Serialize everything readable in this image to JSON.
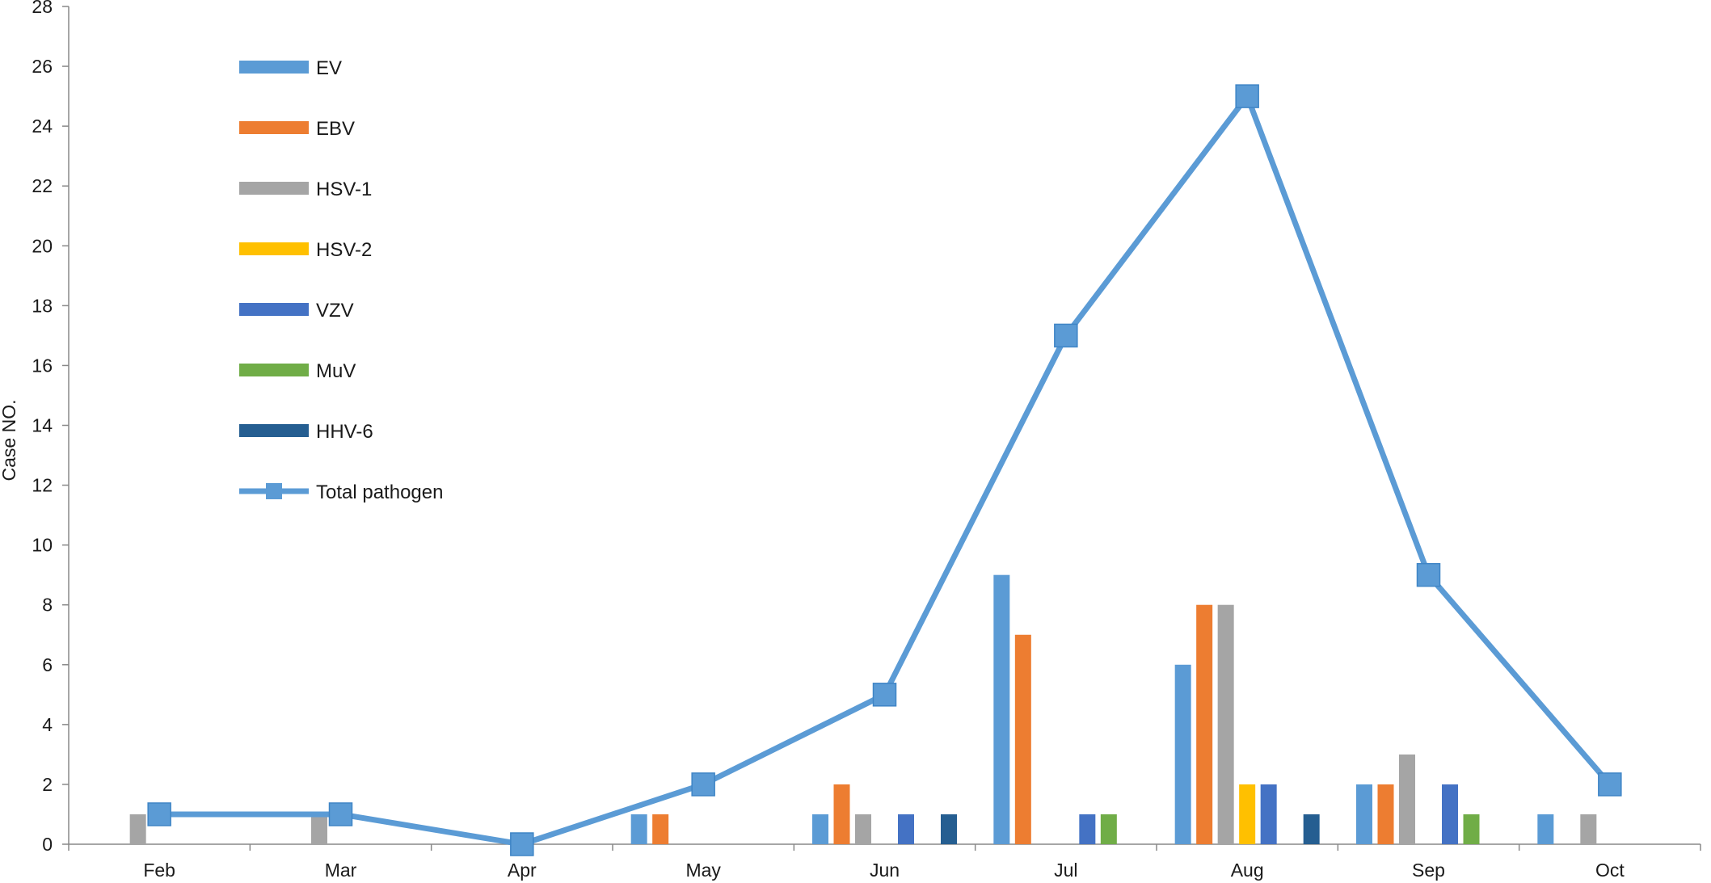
{
  "chart_data": {
    "type": "bar",
    "title": "",
    "xlabel": "",
    "ylabel": "Case NO.",
    "ylim": [
      0,
      28
    ],
    "yticks": [
      0,
      2,
      4,
      6,
      8,
      10,
      12,
      14,
      16,
      18,
      20,
      22,
      24,
      26,
      28
    ],
    "categories": [
      "Feb",
      "Mar",
      "Apr",
      "May",
      "Jun",
      "Jul",
      "Aug",
      "Sep",
      "Oct"
    ],
    "grid": false,
    "legend_position": "top-left",
    "bar_series": [
      {
        "name": "EV",
        "color": "#5b9bd5",
        "values": [
          0,
          0,
          0,
          1,
          1,
          9,
          6,
          2,
          1
        ]
      },
      {
        "name": "EBV",
        "color": "#ed7d31",
        "values": [
          0,
          0,
          0,
          1,
          2,
          7,
          8,
          2,
          0
        ]
      },
      {
        "name": "HSV-1",
        "color": "#a5a5a5",
        "values": [
          1,
          1,
          0,
          0,
          1,
          0,
          8,
          3,
          1
        ]
      },
      {
        "name": "HSV-2",
        "color": "#ffc000",
        "values": [
          0,
          0,
          0,
          0,
          0,
          0,
          2,
          0,
          0
        ]
      },
      {
        "name": "VZV",
        "color": "#4472c4",
        "values": [
          0,
          0,
          0,
          0,
          1,
          1,
          2,
          2,
          0
        ]
      },
      {
        "name": "MuV",
        "color": "#70ad47",
        "values": [
          0,
          0,
          0,
          0,
          0,
          1,
          0,
          1,
          0
        ]
      },
      {
        "name": "HHV-6",
        "color": "#255e91",
        "values": [
          0,
          0,
          0,
          0,
          1,
          0,
          1,
          0,
          0
        ]
      }
    ],
    "line_series": [
      {
        "name": "Total pathogen",
        "color": "#5b9bd5",
        "marker": "square",
        "values": [
          1,
          1,
          0,
          2,
          5,
          17,
          25,
          9,
          2
        ]
      }
    ]
  }
}
